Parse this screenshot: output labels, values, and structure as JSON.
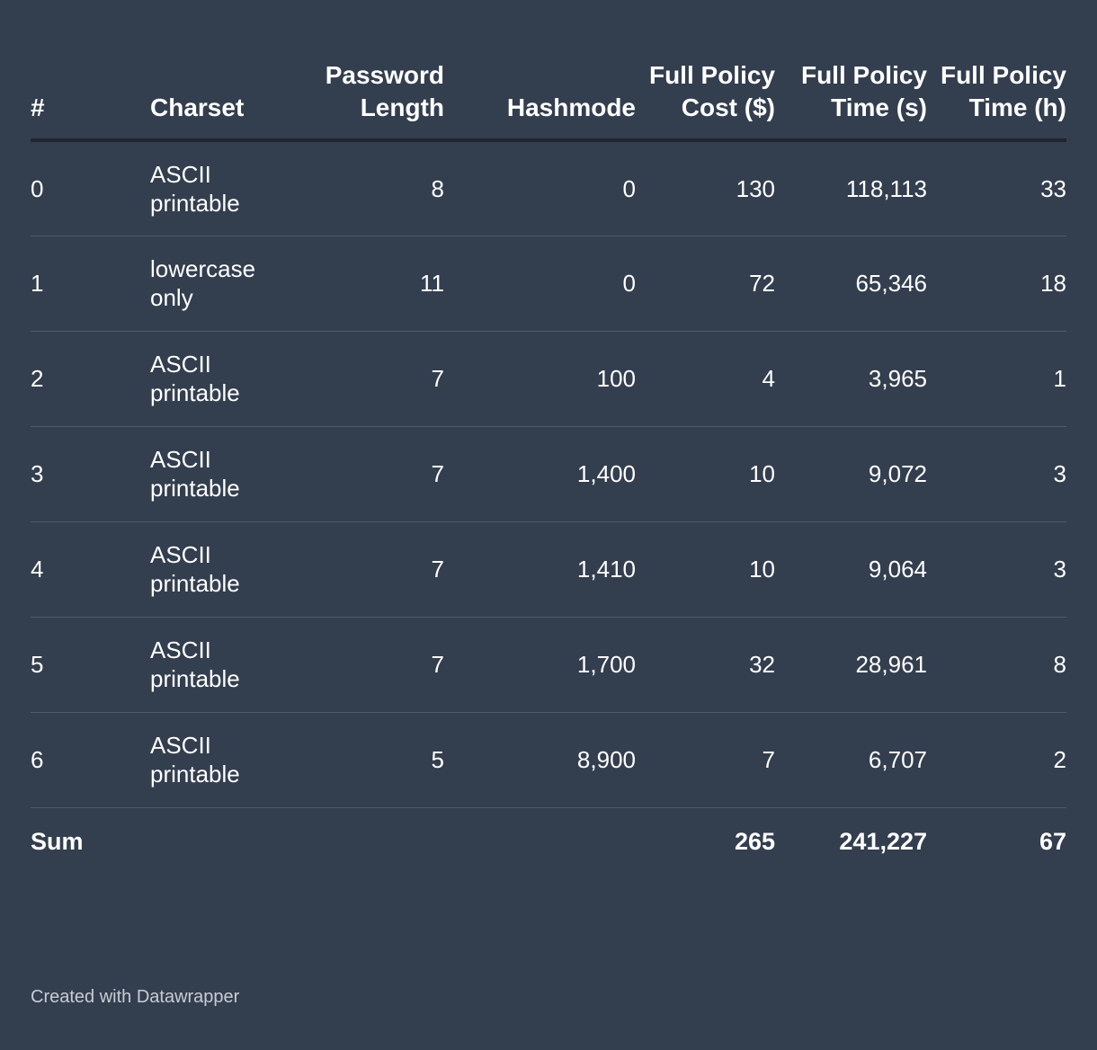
{
  "chart_data": {
    "type": "table",
    "columns": [
      "#",
      "Charset",
      "Password Length",
      "Hashmode",
      "Full Policy Cost ($)",
      "Full Policy Time (s)",
      "Full Policy Time (h)"
    ],
    "rows": [
      [
        "0",
        "ASCII printable",
        "8",
        "0",
        "130",
        "118,113",
        "33"
      ],
      [
        "1",
        "lowercase only",
        "11",
        "0",
        "72",
        "65,346",
        "18"
      ],
      [
        "2",
        "ASCII printable",
        "7",
        "100",
        "4",
        "3,965",
        "1"
      ],
      [
        "3",
        "ASCII printable",
        "7",
        "1,400",
        "10",
        "9,072",
        "3"
      ],
      [
        "4",
        "ASCII printable",
        "7",
        "1,410",
        "10",
        "9,064",
        "3"
      ],
      [
        "5",
        "ASCII printable",
        "7",
        "1,700",
        "32",
        "28,961",
        "8"
      ],
      [
        "6",
        "ASCII printable",
        "5",
        "8,900",
        "7",
        "6,707",
        "2"
      ]
    ],
    "totals": [
      "Sum",
      "",
      "",
      "",
      "265",
      "241,227",
      "67"
    ]
  },
  "credit": "Created with Datawrapper",
  "colors": {
    "background": "#333e4f",
    "text": "#ffffff",
    "header_rule": "#1f2630",
    "row_rule": "#4f5a6a",
    "credit_text": "#c8ccd3"
  }
}
